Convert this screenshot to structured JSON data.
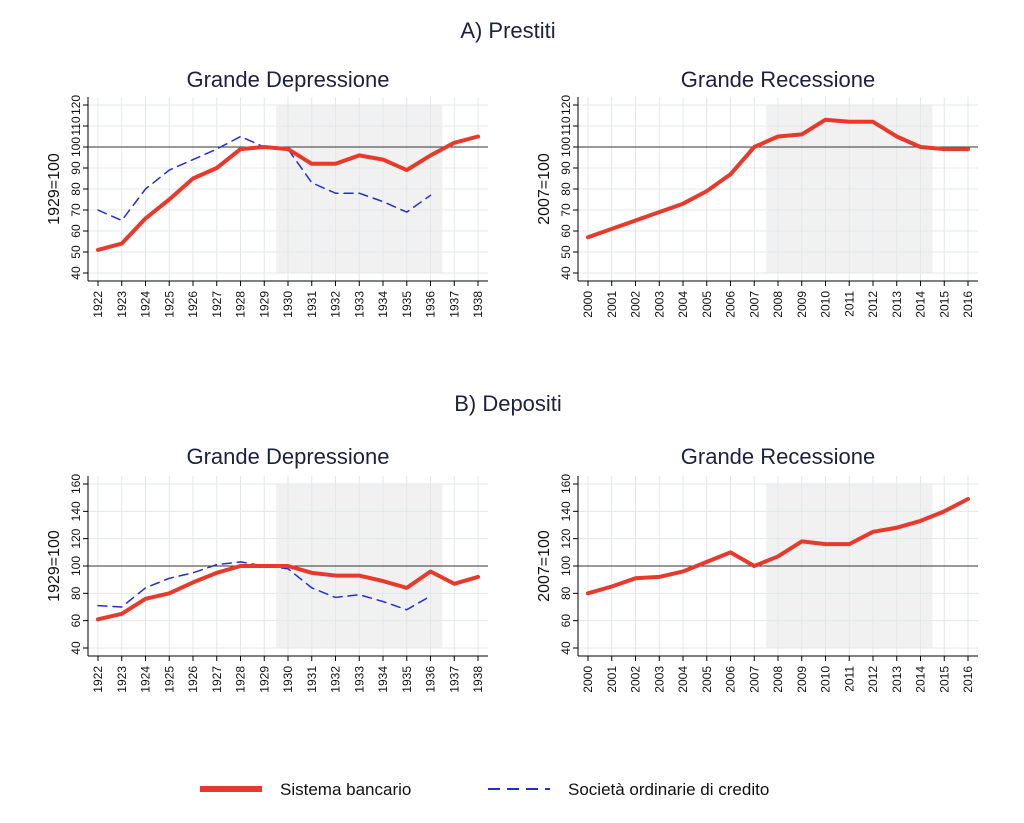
{
  "sections": [
    {
      "title": "A) Prestiti"
    },
    {
      "title": "B) Depositi"
    }
  ],
  "legend": {
    "items": [
      {
        "label": "Sistema bancario",
        "color": "#e8392b",
        "style": "solid"
      },
      {
        "label": "Società ordinarie di credito",
        "color": "#1f2fd6",
        "style": "dashed"
      }
    ]
  },
  "chart_data": [
    {
      "type": "line",
      "title": "Grande Depressione",
      "ylabel": "1929=100",
      "ylim": [
        40,
        120
      ],
      "yticks": [
        40,
        50,
        60,
        70,
        80,
        90,
        100,
        110,
        120
      ],
      "x": [
        "1922",
        "1923",
        "1924",
        "1925",
        "1926",
        "1927",
        "1928",
        "1929",
        "1930",
        "1931",
        "1932",
        "1933",
        "1934",
        "1935",
        "1936",
        "1937",
        "1938"
      ],
      "reference_line": 100,
      "shaded_range": [
        "1929",
        "1936"
      ],
      "grid": true,
      "series": [
        {
          "name": "Sistema bancario",
          "values": [
            51,
            54,
            66,
            75,
            85,
            90,
            99,
            100,
            99,
            92,
            92,
            96,
            94,
            89,
            96,
            102,
            105
          ]
        },
        {
          "name": "Società ordinarie di credito",
          "values": [
            70,
            65,
            80,
            89,
            94,
            99,
            105,
            100,
            99,
            83,
            78,
            78,
            74,
            69,
            77,
            null,
            null
          ]
        }
      ]
    },
    {
      "type": "line",
      "title": "Grande Recessione",
      "ylabel": "2007=100",
      "ylim": [
        40,
        120
      ],
      "yticks": [
        40,
        50,
        60,
        70,
        80,
        90,
        100,
        110,
        120
      ],
      "x": [
        "2000",
        "2001",
        "2002",
        "2003",
        "2004",
        "2005",
        "2006",
        "2007",
        "2008",
        "2009",
        "2010",
        "2011",
        "2012",
        "2013",
        "2014",
        "2015",
        "2016"
      ],
      "reference_line": 100,
      "shaded_range": [
        "2007",
        "2014"
      ],
      "grid": true,
      "series": [
        {
          "name": "Sistema bancario",
          "values": [
            57,
            61,
            65,
            69,
            73,
            79,
            87,
            100,
            105,
            106,
            113,
            112,
            112,
            105,
            100,
            99,
            99
          ]
        }
      ]
    },
    {
      "type": "line",
      "title": "Grande Depressione",
      "ylabel": "1929=100",
      "ylim": [
        40,
        160
      ],
      "yticks": [
        40,
        60,
        80,
        100,
        120,
        140,
        160
      ],
      "x": [
        "1922",
        "1923",
        "1924",
        "1925",
        "1926",
        "1927",
        "1928",
        "1929",
        "1930",
        "1931",
        "1932",
        "1933",
        "1934",
        "1935",
        "1936",
        "1937",
        "1938"
      ],
      "reference_line": 100,
      "shaded_range": [
        "1929",
        "1936"
      ],
      "grid": true,
      "series": [
        {
          "name": "Sistema bancario",
          "values": [
            61,
            65,
            76,
            80,
            88,
            95,
            100,
            100,
            100,
            95,
            93,
            93,
            89,
            84,
            96,
            87,
            92
          ]
        },
        {
          "name": "Società ordinarie di credito",
          "values": [
            71,
            70,
            84,
            91,
            95,
            101,
            103,
            100,
            98,
            84,
            77,
            79,
            74,
            68,
            78,
            null,
            null
          ]
        }
      ]
    },
    {
      "type": "line",
      "title": "Grande Recessione",
      "ylabel": "2007=100",
      "ylim": [
        40,
        160
      ],
      "yticks": [
        40,
        60,
        80,
        100,
        120,
        140,
        160
      ],
      "x": [
        "2000",
        "2001",
        "2002",
        "2003",
        "2004",
        "2005",
        "2006",
        "2007",
        "2008",
        "2009",
        "2010",
        "2011",
        "2012",
        "2013",
        "2014",
        "2015",
        "2016"
      ],
      "reference_line": 100,
      "shaded_range": [
        "2007",
        "2014"
      ],
      "grid": true,
      "series": [
        {
          "name": "Sistema bancario",
          "values": [
            80,
            85,
            91,
            92,
            96,
            103,
            110,
            100,
            107,
            118,
            116,
            116,
            125,
            128,
            133,
            140,
            149
          ]
        }
      ]
    }
  ]
}
